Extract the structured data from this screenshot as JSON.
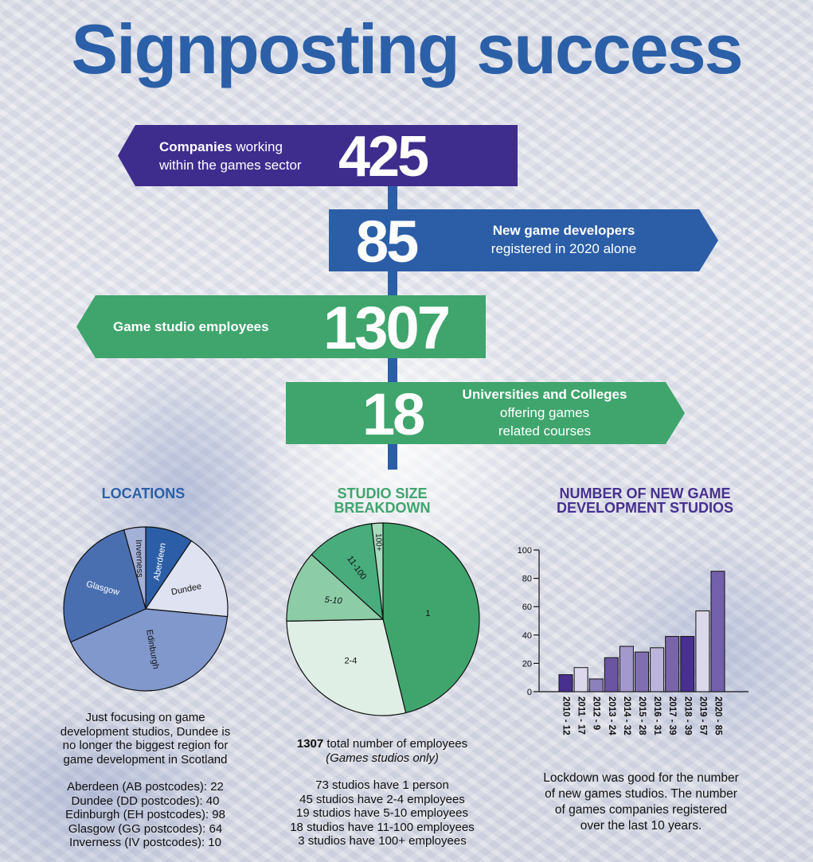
{
  "title": "Signposting success",
  "signposts": [
    {
      "value": "425",
      "label_bold": "Companies",
      "label_rest": " working",
      "label_line2": "within the games sector",
      "color": "#3f2d8d",
      "direction": "left"
    },
    {
      "value": "85",
      "label_line1": "New game developers",
      "label_line2": "registered in 2020 alone",
      "color": "#2b5ea7",
      "direction": "right"
    },
    {
      "value": "1307",
      "label_line1": "Game studio employees",
      "color": "#3fa56d",
      "direction": "left"
    },
    {
      "value": "18",
      "label_line1": "Universities and Colleges",
      "label_line2": "offering games",
      "label_line3": "related courses",
      "color": "#3fa56d",
      "direction": "right"
    }
  ],
  "pole_color": "#2b5ea7",
  "locations": {
    "heading": "LOCATIONS",
    "caption_lines": [
      "Just focusing on game",
      "development studios, Dundee is",
      "no longer the biggest region for",
      "game development in Scotland"
    ],
    "list": [
      "Aberdeen (AB postcodes): 22",
      "Dundee (DD postcodes): 40",
      "Edinburgh (EH postcodes): 98",
      "Glasgow (GG postcodes): 64",
      "Inverness (IV postcodes): 10"
    ]
  },
  "studio_size": {
    "heading_line1": "STUDIO SIZE",
    "heading_line2": "BREAKDOWN",
    "total_bold": "1307",
    "total_rest": " total number of employees",
    "total_note": "(Games studios only)",
    "list": [
      "73 studios have 1 person",
      "45 studios have 2-4 employees",
      "19 studios have 5-10 employees",
      "18 studios have 11-100 employees",
      "3 studios have 100+ employees"
    ]
  },
  "new_studios": {
    "heading_line1": "NUMBER OF NEW GAME",
    "heading_line2": "DEVELOPMENT STUDIOS",
    "caption_lines": [
      "Lockdown was good for the number",
      "of new games studios. The number",
      "of games companies registered",
      "over the last 10 years."
    ]
  },
  "chart_data": [
    {
      "type": "pie",
      "title": "LOCATIONS",
      "categories": [
        "Aberdeen",
        "Dundee",
        "Edinburgh",
        "Glasgow",
        "Inverness"
      ],
      "values": [
        22,
        40,
        98,
        64,
        10
      ],
      "colors": [
        "#2b5ea7",
        "#dfe2f1",
        "#8198cc",
        "#4a6fb1",
        "#a3b1d8"
      ]
    },
    {
      "type": "pie",
      "title": "STUDIO SIZE BREAKDOWN",
      "categories": [
        "1",
        "2-4",
        "5-10",
        "11-100",
        "100+"
      ],
      "values": [
        73,
        45,
        19,
        18,
        3
      ],
      "colors": [
        "#3fa56d",
        "#dfefe5",
        "#8ccca6",
        "#48ac7d",
        "#a7d9bd"
      ]
    },
    {
      "type": "bar",
      "title": "NUMBER OF NEW GAME DEVELOPMENT STUDIOS",
      "categories": [
        "2010 - 12",
        "2011 - 17",
        "2012 - 9",
        "2013 - 24",
        "2014 - 32",
        "2015 - 28",
        "2016 - 31",
        "2017 - 39",
        "2018 - 39",
        "2019 - 57",
        "2020 - 85"
      ],
      "x": [
        2010,
        2011,
        2012,
        2013,
        2014,
        2015,
        2016,
        2017,
        2018,
        2019,
        2020
      ],
      "values": [
        12,
        17,
        9,
        24,
        32,
        28,
        31,
        39,
        39,
        57,
        85
      ],
      "colors": [
        "#47308f",
        "#dcd8ec",
        "#8c80bd",
        "#6b55a2",
        "#a399cc",
        "#7f6fb2",
        "#bcb4da",
        "#7865aa",
        "#47308f",
        "#dcd8ec",
        "#7360aa"
      ],
      "yticks": [
        0,
        20,
        40,
        60,
        80,
        100
      ],
      "ylim": [
        0,
        100
      ],
      "xlabel": "",
      "ylabel": "",
      "grid": false,
      "legend": "none"
    }
  ]
}
